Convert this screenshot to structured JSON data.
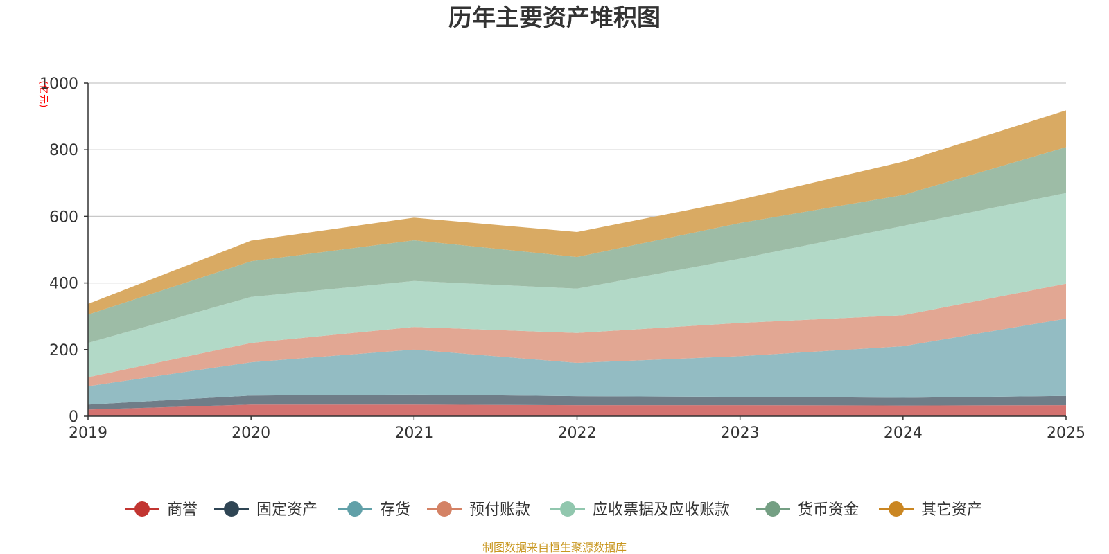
{
  "chart_data": {
    "type": "area",
    "stacked": true,
    "title": "历年主要资产堆积图",
    "ylabel": "(亿元)",
    "xlabel": "",
    "source": "制图数据来自恒生聚源数据库",
    "x": [
      "2019",
      "2020",
      "2021",
      "2022",
      "2023",
      "2024",
      "2025"
    ],
    "ylim": [
      0,
      1000
    ],
    "yticks": [
      0,
      200,
      400,
      600,
      800,
      1000
    ],
    "grid": true,
    "legend_position": "bottom",
    "series": [
      {
        "name": "商誉",
        "color": "#c23531",
        "area_color": "#d47270",
        "values": [
          20,
          35,
          35,
          33,
          33,
          32,
          33
        ]
      },
      {
        "name": "固定资产",
        "color": "#2f4554",
        "area_color": "#6f7d88",
        "values": [
          15,
          27,
          30,
          27,
          25,
          23,
          28
        ]
      },
      {
        "name": "存货",
        "color": "#61a0a8",
        "area_color": "#93bcc3",
        "values": [
          55,
          100,
          135,
          100,
          122,
          155,
          232
        ]
      },
      {
        "name": "预付账款",
        "color": "#d48265",
        "area_color": "#e2a793",
        "values": [
          27,
          58,
          68,
          90,
          100,
          93,
          105
        ]
      },
      {
        "name": "应收票据及应收账款",
        "color": "#91c7ae",
        "area_color": "#b2d9c7",
        "values": [
          103,
          138,
          138,
          133,
          193,
          268,
          272
        ]
      },
      {
        "name": "货币资金",
        "color": "#749f83",
        "area_color": "#9dbca6",
        "values": [
          85,
          107,
          122,
          95,
          107,
          93,
          138
        ]
      },
      {
        "name": "其它资产",
        "color": "#ca8622",
        "area_color": "#d9aa63",
        "values": [
          32,
          62,
          68,
          75,
          70,
          100,
          110
        ]
      }
    ]
  }
}
